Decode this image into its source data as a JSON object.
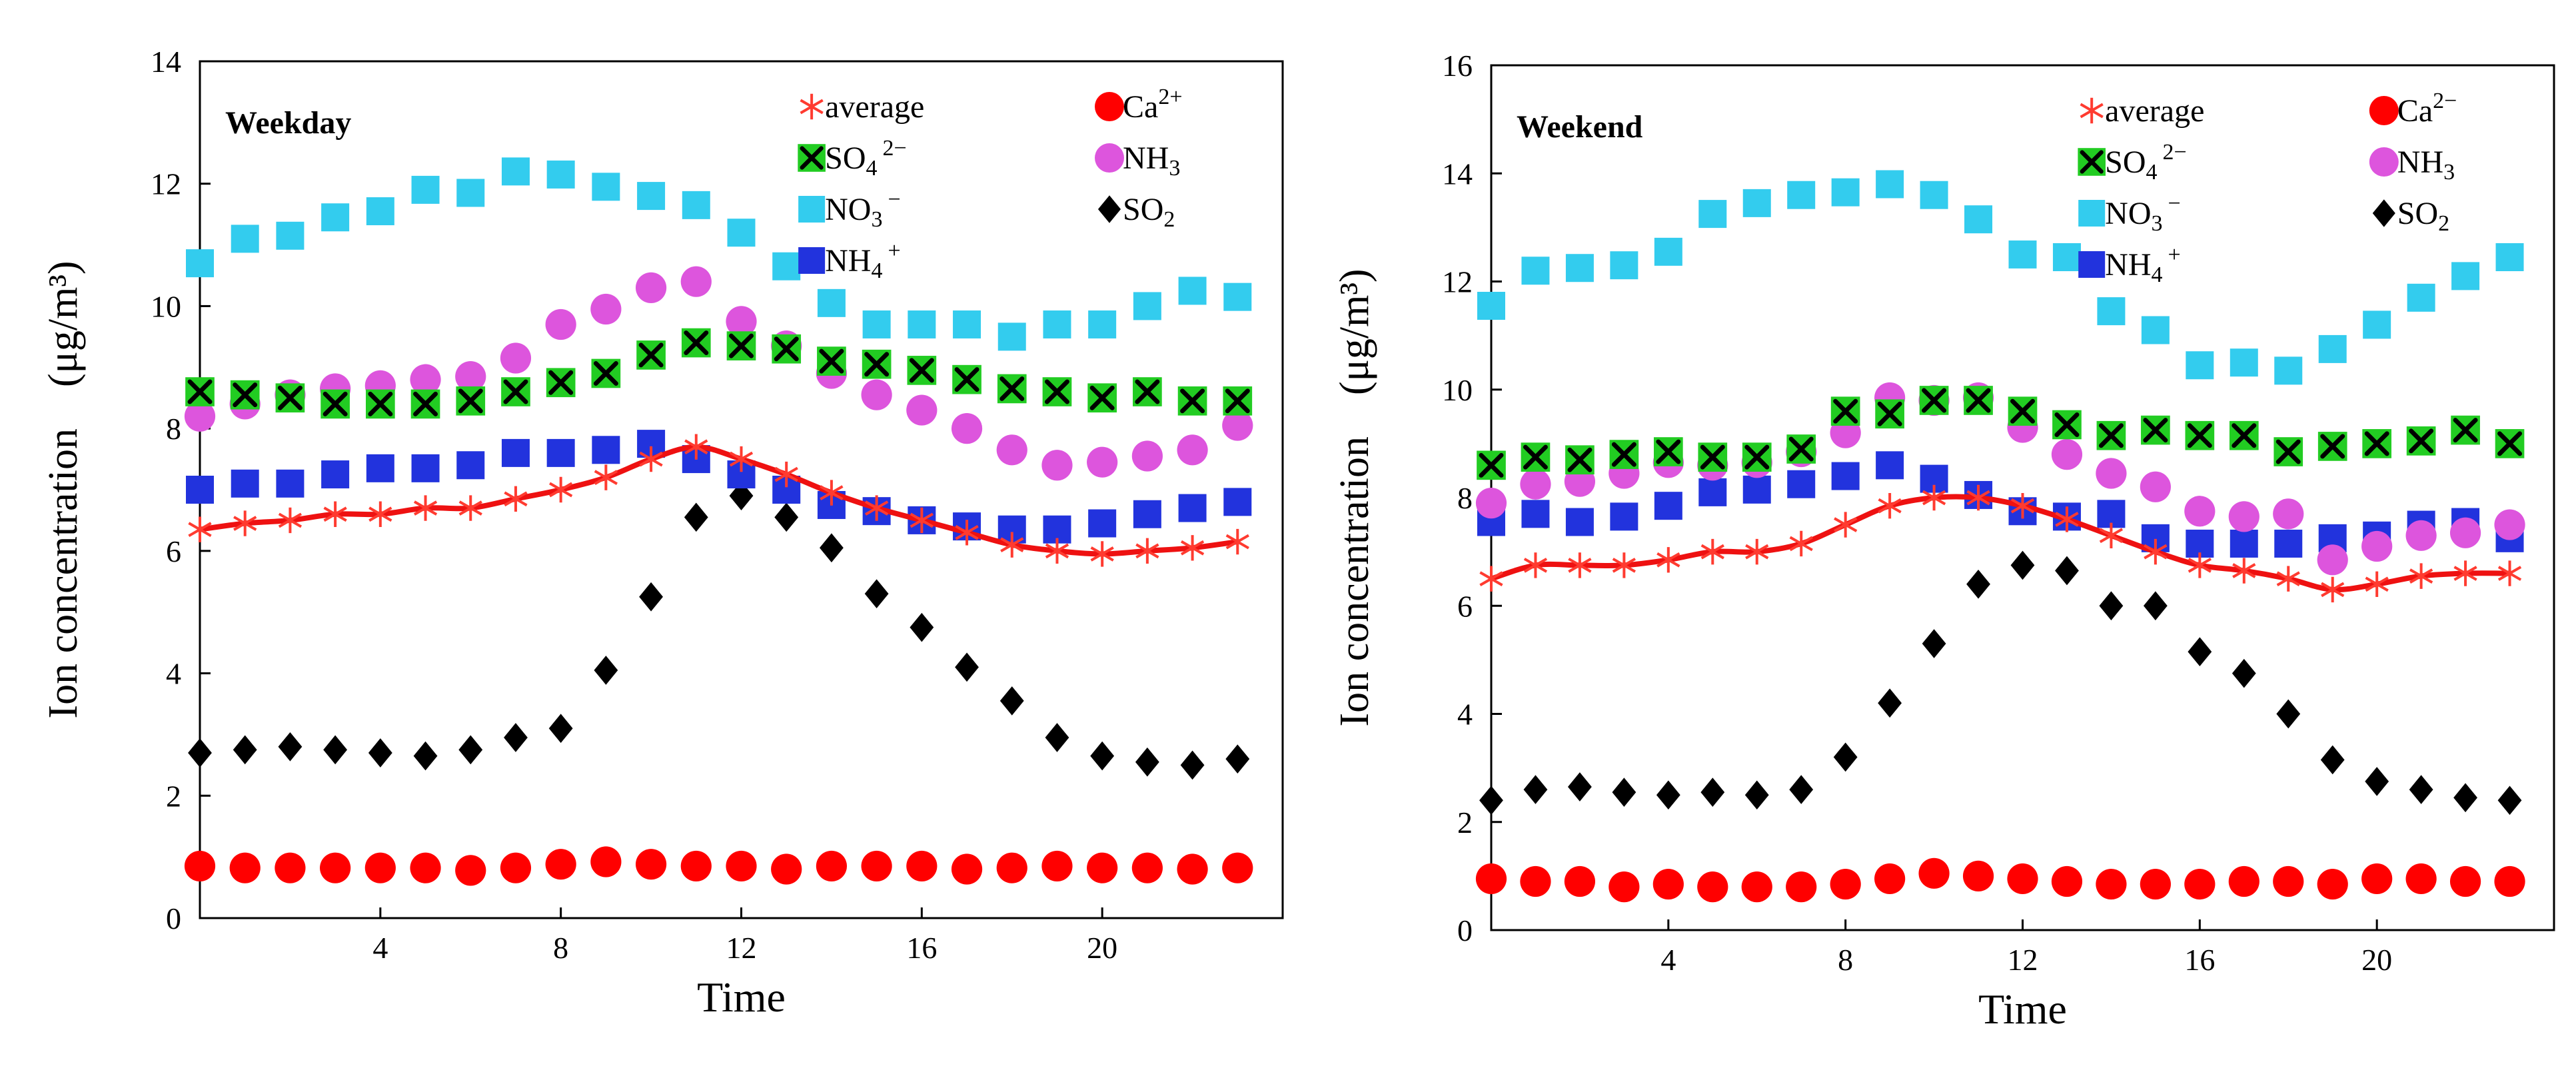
{
  "chart_data": [
    {
      "type": "scatter",
      "panel_label": "Weekday",
      "xlabel": "Time",
      "ylabel": "Ion concentration　(μg/m³)",
      "xlim": [
        0,
        24
      ],
      "ylim": [
        0,
        14
      ],
      "xticks": [
        4,
        8,
        12,
        16,
        20
      ],
      "yticks": [
        0,
        2,
        4,
        6,
        8,
        10,
        12,
        14
      ],
      "legend_position": "top-right",
      "x": [
        0,
        1,
        2,
        3,
        4,
        5,
        6,
        7,
        8,
        9,
        10,
        11,
        12,
        13,
        14,
        15,
        16,
        17,
        18,
        19,
        20,
        21,
        22,
        23
      ],
      "series": [
        {
          "name": "average",
          "label": "average",
          "marker": "asterisk",
          "color": "#ff3b30",
          "line": true,
          "values": [
            6.35,
            6.45,
            6.5,
            6.6,
            6.6,
            6.7,
            6.7,
            6.85,
            7.0,
            7.2,
            7.5,
            7.7,
            7.5,
            7.25,
            6.95,
            6.7,
            6.5,
            6.3,
            6.1,
            6.0,
            5.95,
            6.0,
            6.05,
            6.15
          ]
        },
        {
          "name": "Ca2+",
          "label": "Ca",
          "sup": "2+",
          "marker": "circle",
          "color": "#ff0000",
          "values": [
            0.85,
            0.82,
            0.82,
            0.82,
            0.82,
            0.82,
            0.78,
            0.82,
            0.88,
            0.92,
            0.88,
            0.85,
            0.85,
            0.8,
            0.85,
            0.85,
            0.85,
            0.8,
            0.82,
            0.85,
            0.82,
            0.82,
            0.8,
            0.82
          ]
        },
        {
          "name": "SO4 2-",
          "label": "SO",
          "sub": "4",
          "sup": "2−",
          "marker": "cross-box",
          "color": "#22cc22",
          "values": [
            8.6,
            8.55,
            8.5,
            8.4,
            8.4,
            8.4,
            8.45,
            8.6,
            8.75,
            8.9,
            9.2,
            9.4,
            9.35,
            9.3,
            9.1,
            9.05,
            8.95,
            8.8,
            8.65,
            8.6,
            8.5,
            8.6,
            8.45,
            8.45
          ]
        },
        {
          "name": "NH3",
          "label": "NH",
          "sub": "3",
          "marker": "circle",
          "color": "#dd55dd",
          "values": [
            8.2,
            8.4,
            8.55,
            8.65,
            8.7,
            8.8,
            8.85,
            9.15,
            9.7,
            9.95,
            10.3,
            10.4,
            9.75,
            9.35,
            8.9,
            8.55,
            8.3,
            8.0,
            7.65,
            7.4,
            7.45,
            7.55,
            7.65,
            8.05
          ]
        },
        {
          "name": "NO3-",
          "label": "NO",
          "sub": "3",
          "sup": "−",
          "marker": "square",
          "color": "#33ccee",
          "values": [
            10.7,
            11.1,
            11.15,
            11.45,
            11.55,
            11.9,
            11.85,
            12.2,
            12.15,
            11.95,
            11.8,
            11.65,
            11.2,
            10.65,
            10.05,
            9.7,
            9.7,
            9.7,
            9.5,
            9.7,
            9.7,
            10.0,
            10.25,
            10.15
          ]
        },
        {
          "name": "SO2",
          "label": "SO",
          "sub": "2",
          "marker": "diamond",
          "color": "#000000",
          "values": [
            2.7,
            2.75,
            2.8,
            2.75,
            2.7,
            2.65,
            2.75,
            2.95,
            3.1,
            4.05,
            5.25,
            6.55,
            6.9,
            6.55,
            6.05,
            5.3,
            4.75,
            4.1,
            3.55,
            2.95,
            2.65,
            2.55,
            2.5,
            2.6
          ]
        },
        {
          "name": "NH4+",
          "label": "NH",
          "sub": "4",
          "sup": "+",
          "marker": "square",
          "color": "#2233dd",
          "values": [
            7.0,
            7.1,
            7.1,
            7.25,
            7.35,
            7.35,
            7.4,
            7.6,
            7.6,
            7.65,
            7.75,
            7.5,
            7.25,
            7.0,
            6.75,
            6.65,
            6.5,
            6.4,
            6.35,
            6.35,
            6.45,
            6.6,
            6.7,
            6.8
          ]
        }
      ]
    },
    {
      "type": "scatter",
      "panel_label": "Weekend",
      "xlabel": "Time",
      "ylabel": "Ion concentration　(μg/m³)",
      "xlim": [
        0,
        24
      ],
      "ylim": [
        0,
        16
      ],
      "xticks": [
        4,
        8,
        12,
        16,
        20
      ],
      "yticks": [
        0,
        2,
        4,
        6,
        8,
        10,
        12,
        14,
        16
      ],
      "legend_position": "top-right",
      "x": [
        0,
        1,
        2,
        3,
        4,
        5,
        6,
        7,
        8,
        9,
        10,
        11,
        12,
        13,
        14,
        15,
        16,
        17,
        18,
        19,
        20,
        21,
        22,
        23
      ],
      "series": [
        {
          "name": "average",
          "label": "average",
          "marker": "asterisk",
          "color": "#ff3b30",
          "line": true,
          "values": [
            6.5,
            6.75,
            6.75,
            6.75,
            6.85,
            7.0,
            7.0,
            7.15,
            7.5,
            7.85,
            8.0,
            8.0,
            7.85,
            7.6,
            7.3,
            7.0,
            6.75,
            6.65,
            6.5,
            6.3,
            6.4,
            6.55,
            6.6,
            6.6
          ]
        },
        {
          "name": "Ca2-",
          "label": "Ca",
          "sup": "2−",
          "marker": "circle",
          "color": "#ff0000",
          "values": [
            0.95,
            0.9,
            0.9,
            0.8,
            0.85,
            0.8,
            0.8,
            0.8,
            0.85,
            0.95,
            1.05,
            1.0,
            0.95,
            0.9,
            0.85,
            0.85,
            0.85,
            0.9,
            0.9,
            0.85,
            0.95,
            0.95,
            0.9,
            0.9
          ]
        },
        {
          "name": "SO4 2-",
          "label": "SO",
          "sub": "4",
          "sup": "2−",
          "marker": "cross-box",
          "color": "#22cc22",
          "values": [
            8.6,
            8.75,
            8.7,
            8.8,
            8.85,
            8.75,
            8.75,
            8.9,
            9.6,
            9.55,
            9.8,
            9.8,
            9.6,
            9.35,
            9.15,
            9.25,
            9.15,
            9.15,
            8.85,
            8.95,
            9.0,
            9.05,
            9.25,
            9.0
          ]
        },
        {
          "name": "NH3",
          "label": "NH",
          "sub": "3",
          "marker": "circle",
          "color": "#dd55dd",
          "values": [
            7.9,
            8.25,
            8.3,
            8.45,
            8.65,
            8.6,
            8.65,
            8.85,
            9.2,
            9.85,
            9.8,
            9.85,
            9.3,
            8.8,
            8.45,
            8.2,
            7.75,
            7.65,
            7.7,
            6.85,
            7.1,
            7.3,
            7.35,
            7.5
          ]
        },
        {
          "name": "NO3-",
          "label": "NO",
          "sub": "3",
          "sup": "−",
          "marker": "square",
          "color": "#33ccee",
          "values": [
            11.55,
            12.2,
            12.25,
            12.3,
            12.55,
            13.25,
            13.45,
            13.6,
            13.65,
            13.8,
            13.6,
            13.15,
            12.5,
            12.45,
            11.45,
            11.1,
            10.45,
            10.5,
            10.35,
            10.75,
            11.2,
            11.7,
            12.1,
            12.45
          ]
        },
        {
          "name": "SO2",
          "label": "SO",
          "sub": "2",
          "marker": "diamond",
          "color": "#000000",
          "values": [
            2.4,
            2.6,
            2.65,
            2.55,
            2.5,
            2.55,
            2.5,
            2.6,
            3.2,
            4.2,
            5.3,
            6.4,
            6.75,
            6.65,
            6.0,
            6.0,
            5.15,
            4.75,
            4.0,
            3.15,
            2.75,
            2.6,
            2.45,
            2.4
          ]
        },
        {
          "name": "NH4+",
          "label": "NH",
          "sub": "4",
          "sup": "+",
          "marker": "square",
          "color": "#2233dd",
          "values": [
            7.55,
            7.7,
            7.55,
            7.65,
            7.85,
            8.1,
            8.15,
            8.25,
            8.4,
            8.6,
            8.35,
            8.05,
            7.75,
            7.65,
            7.7,
            7.25,
            7.15,
            7.15,
            7.15,
            7.25,
            7.3,
            7.5,
            7.55,
            7.25
          ]
        }
      ]
    }
  ]
}
